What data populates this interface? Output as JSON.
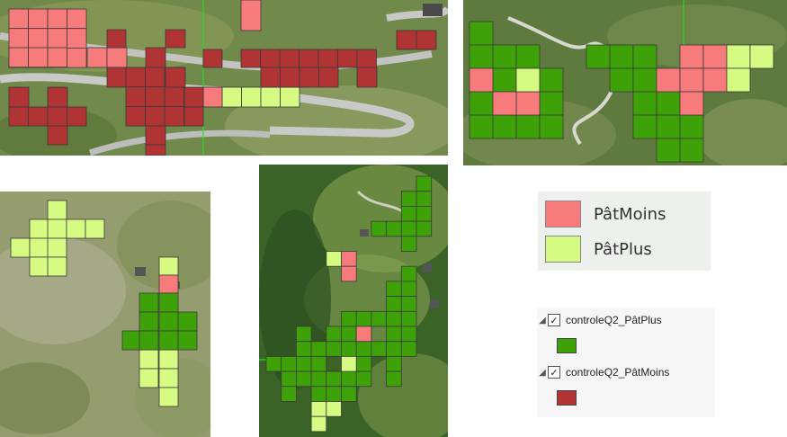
{
  "colors": {
    "patmoins": "#f77b7b",
    "patplus": "#d6fa82",
    "q2_patplus": "#3fa108",
    "q2_patmoins": "#b03434"
  },
  "legend_top": {
    "items": [
      {
        "label": "PâtMoins",
        "color": "#f77b7b"
      },
      {
        "label": "PâtPlus",
        "color": "#d6fa82"
      }
    ]
  },
  "layer_panel": {
    "layers": [
      {
        "name": "controleQ2_PâtPlus",
        "checked": true,
        "expand_icon": "triangle-down-icon",
        "swatch_color": "#3fa108"
      },
      {
        "name": "controleQ2_PâtMoins",
        "checked": true,
        "expand_icon": "triangle-down-icon",
        "swatch_color": "#b03434"
      }
    ]
  }
}
